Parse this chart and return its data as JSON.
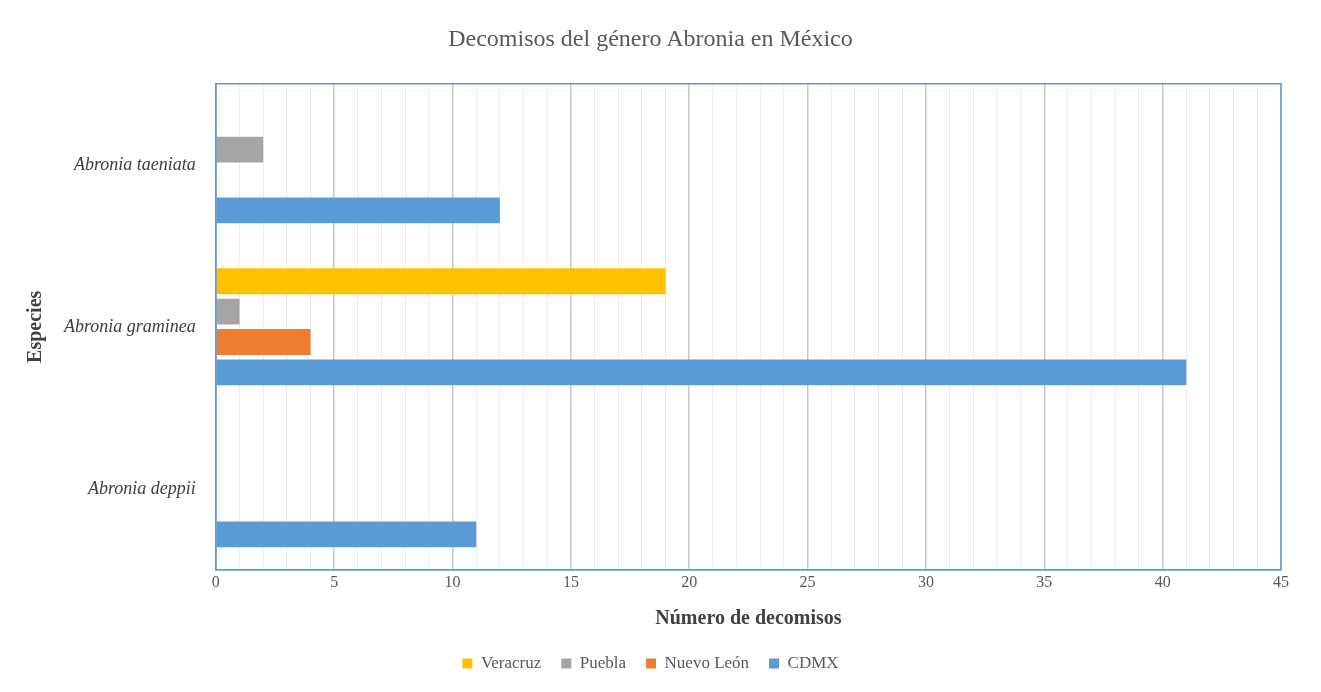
{
  "chart_data": {
    "type": "bar",
    "orientation": "horizontal",
    "title": "Decomisos del género Abronia en México",
    "xlabel": "Número de decomisos",
    "ylabel": "Especies",
    "categories": [
      "Abronia taeniata",
      "Abronia graminea",
      "Abronia deppii"
    ],
    "series": [
      {
        "name": "Veracruz",
        "color": "#ffc000",
        "values": [
          null,
          19,
          null
        ]
      },
      {
        "name": "Puebla",
        "color": "#a5a5a5",
        "values": [
          2,
          1,
          null
        ]
      },
      {
        "name": "Nuevo León",
        "color": "#ed7d31",
        "values": [
          null,
          4,
          null
        ]
      },
      {
        "name": "CDMX",
        "color": "#5b9bd5",
        "values": [
          12,
          41,
          11
        ]
      }
    ],
    "xlim": [
      0,
      45
    ],
    "xticks": [
      0,
      {
        "value": 1,
        "label": null
      },
      {
        "value": 2,
        "label": null
      },
      {
        "value": 3,
        "label": null
      },
      {
        "value": 4,
        "label": null
      },
      5,
      {
        "value": 6,
        "label": null
      },
      {
        "value": 7,
        "label": null
      },
      {
        "value": 8,
        "label": null
      },
      {
        "value": 9,
        "label": null
      },
      10,
      {
        "value": 11,
        "label": null
      },
      {
        "value": 12,
        "label": null
      },
      {
        "value": 13,
        "label": null
      },
      {
        "value": 14,
        "label": null
      },
      15,
      {
        "value": 16,
        "label": null
      },
      {
        "value": 17,
        "label": null
      },
      {
        "value": 18,
        "label": null
      },
      {
        "value": 19,
        "label": null
      },
      20,
      {
        "value": 21,
        "label": null
      },
      {
        "value": 22,
        "label": null
      },
      {
        "value": 23,
        "label": null
      },
      {
        "value": 24,
        "label": null
      },
      25,
      {
        "value": 26,
        "label": null
      },
      {
        "value": 27,
        "label": null
      },
      {
        "value": 28,
        "label": null
      },
      {
        "value": 29,
        "label": null
      },
      30,
      {
        "value": 31,
        "label": null
      },
      {
        "value": 32,
        "label": null
      },
      {
        "value": 33,
        "label": null
      },
      {
        "value": 34,
        "label": null
      },
      35,
      {
        "value": 36,
        "label": null
      },
      {
        "value": 37,
        "label": null
      },
      {
        "value": 38,
        "label": null
      },
      {
        "value": 39,
        "label": null
      },
      40,
      {
        "value": 41,
        "label": null
      },
      {
        "value": 42,
        "label": null
      },
      {
        "value": 43,
        "label": null
      },
      {
        "value": 44,
        "label": null
      },
      45
    ],
    "grid": "x",
    "legend": "bottom"
  }
}
